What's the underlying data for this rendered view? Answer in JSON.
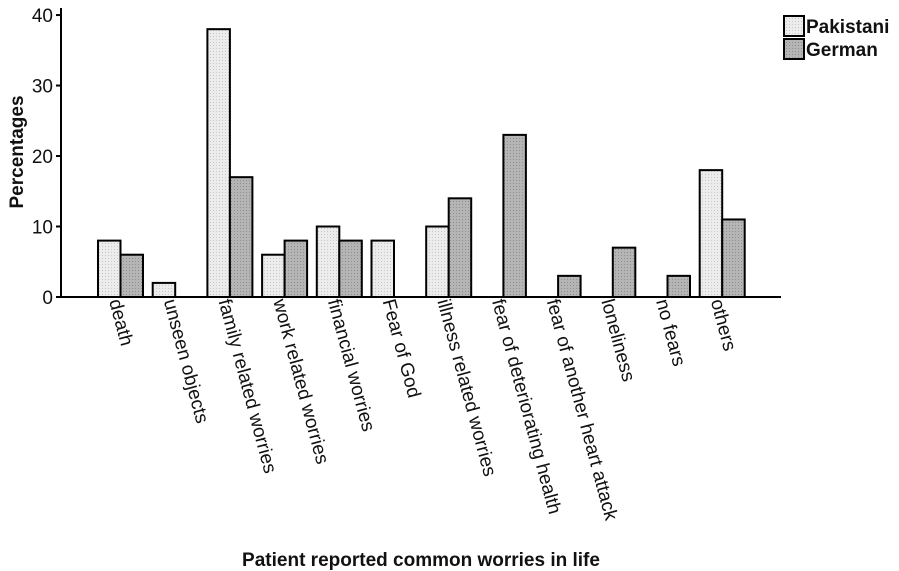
{
  "chart_data": {
    "type": "bar",
    "categories": [
      "death",
      "unseen objects",
      "family related worries",
      "work related worries",
      "financial worries",
      "Fear of God",
      "illness related worries",
      "fear of deteriorating health",
      "fear of another heart attack",
      "loneliness",
      "no fears",
      "others"
    ],
    "series": [
      {
        "name": "Pakistani",
        "color": "#ebebeb",
        "values": [
          8,
          2,
          38,
          6,
          10,
          8,
          10,
          0,
          0,
          0,
          0,
          18
        ]
      },
      {
        "name": "German",
        "color": "#b3b3b3",
        "values": [
          6,
          0,
          17,
          8,
          8,
          0,
          14,
          23,
          3,
          7,
          3,
          11
        ]
      }
    ],
    "title": "",
    "xlabel": "Patient reported common worries in life",
    "ylabel": "Percentages",
    "ylim": [
      0,
      41
    ],
    "yticks": [
      0,
      10,
      20,
      30,
      40
    ],
    "grid": false,
    "legend_position": "top-right"
  }
}
